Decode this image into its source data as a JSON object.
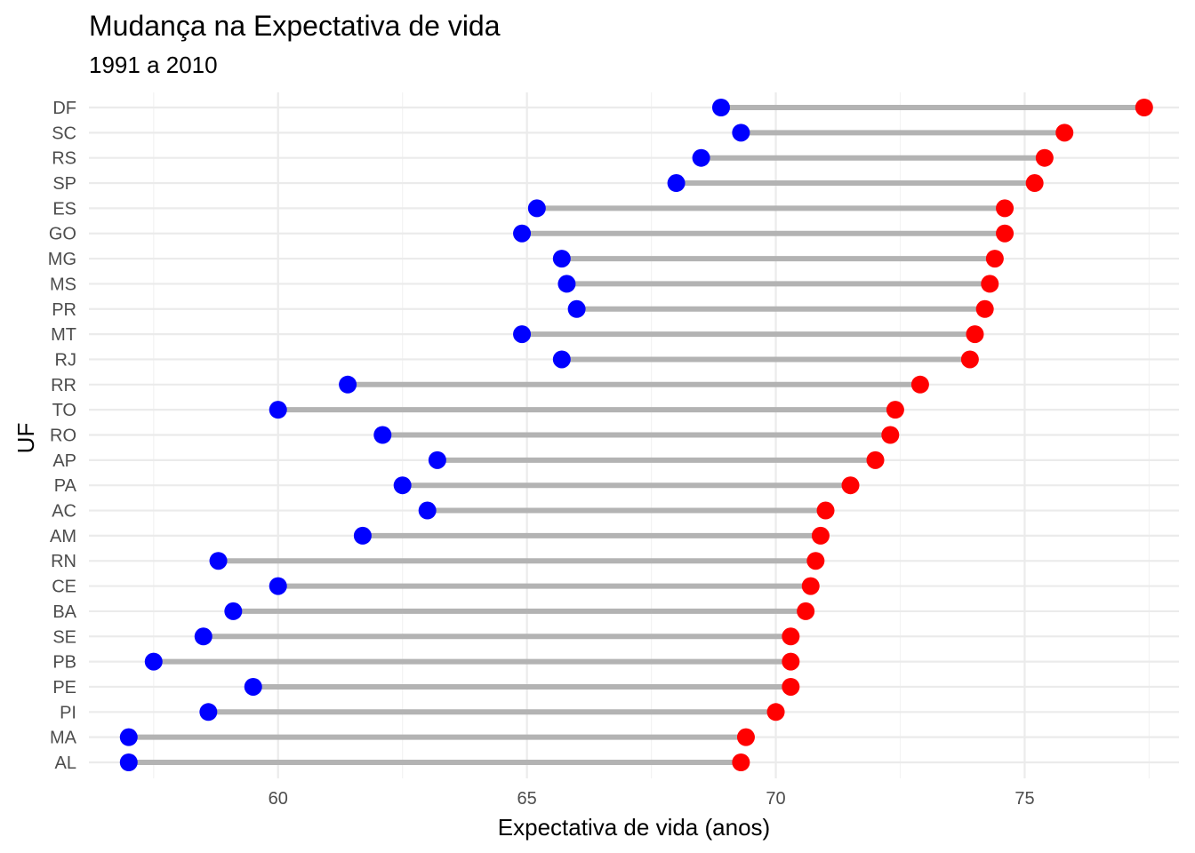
{
  "chart_data": {
    "type": "dumbbell",
    "title": "Mudança na Expectativa de vida",
    "subtitle": "1991 a 2010",
    "xlabel": "Expectativa de vida (anos)",
    "ylabel": "UF",
    "xlim": [
      56.2,
      78.1
    ],
    "x_ticks": [
      60,
      65,
      70,
      75
    ],
    "grid": true,
    "colors": {
      "start": "#0000ff",
      "end": "#ff0000",
      "segment": "#b3b3b3"
    },
    "categories": [
      "DF",
      "SC",
      "RS",
      "SP",
      "ES",
      "GO",
      "MG",
      "MS",
      "PR",
      "MT",
      "RJ",
      "RR",
      "TO",
      "RO",
      "AP",
      "PA",
      "AC",
      "AM",
      "RN",
      "CE",
      "BA",
      "SE",
      "PB",
      "PE",
      "PI",
      "MA",
      "AL"
    ],
    "series": [
      {
        "values": [
          68.9,
          69.3,
          68.5,
          68.0,
          65.2,
          64.9,
          65.7,
          65.8,
          66.0,
          64.9,
          65.7,
          61.4,
          60.0,
          62.1,
          63.2,
          62.5,
          63.0,
          61.7,
          58.8,
          60.0,
          59.1,
          58.5,
          57.5,
          59.5,
          58.6,
          57.0,
          57.0
        ]
      },
      {
        "values": [
          77.4,
          75.8,
          75.4,
          75.2,
          74.6,
          74.6,
          74.4,
          74.3,
          74.2,
          74.0,
          73.9,
          72.9,
          72.4,
          72.3,
          72.0,
          71.5,
          71.0,
          70.9,
          70.8,
          70.7,
          70.6,
          70.3,
          70.3,
          70.3,
          70.0,
          69.4,
          69.3
        ]
      }
    ]
  }
}
